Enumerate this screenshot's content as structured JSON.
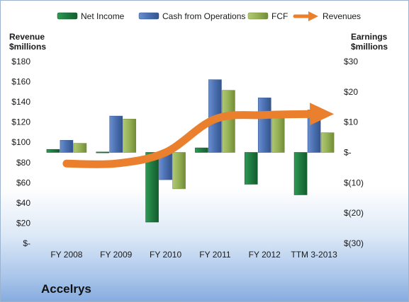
{
  "chart_data": {
    "type": "bar",
    "categories": [
      "FY 2008",
      "FY 2009",
      "FY 2010",
      "FY 2011",
      "FY 2012",
      "TTM 3-2013"
    ],
    "left_axis": {
      "title_line1": "Revenue",
      "title_line2": "$millions",
      "ticks": [
        "$-",
        "$20",
        "$40",
        "$60",
        "$80",
        "$100",
        "$120",
        "$140",
        "$160",
        "$180"
      ],
      "ylim": [
        0,
        180
      ]
    },
    "right_axis": {
      "title_line1": "Earnings",
      "title_line2": "$millions",
      "ticks": [
        "$(30)",
        "$(20)",
        "$(10)",
        "$-",
        "$10",
        "$20",
        "$30"
      ],
      "ylim": [
        -30,
        30
      ]
    },
    "series": [
      {
        "name": "Net Income",
        "axis": "right",
        "color": "#1f7a3f",
        "values": [
          1.0,
          0,
          -23,
          1.5,
          -10.5,
          -14
        ]
      },
      {
        "name": "Cash from Operations",
        "axis": "right",
        "color": "#4a6fb0",
        "values": [
          4,
          12,
          -9,
          24,
          18,
          14
        ]
      },
      {
        "name": "FCF",
        "axis": "right",
        "color": "#8fac4c",
        "values": [
          3,
          11,
          -12,
          20.5,
          12,
          6.5
        ]
      }
    ],
    "line_series": {
      "name": "Revenues",
      "axis": "left",
      "color": "#ea7f2e",
      "arrow": true,
      "values": [
        79,
        79,
        90,
        123,
        127,
        128
      ]
    },
    "legend_placement": "top",
    "grid": false,
    "company": "Accelrys"
  }
}
